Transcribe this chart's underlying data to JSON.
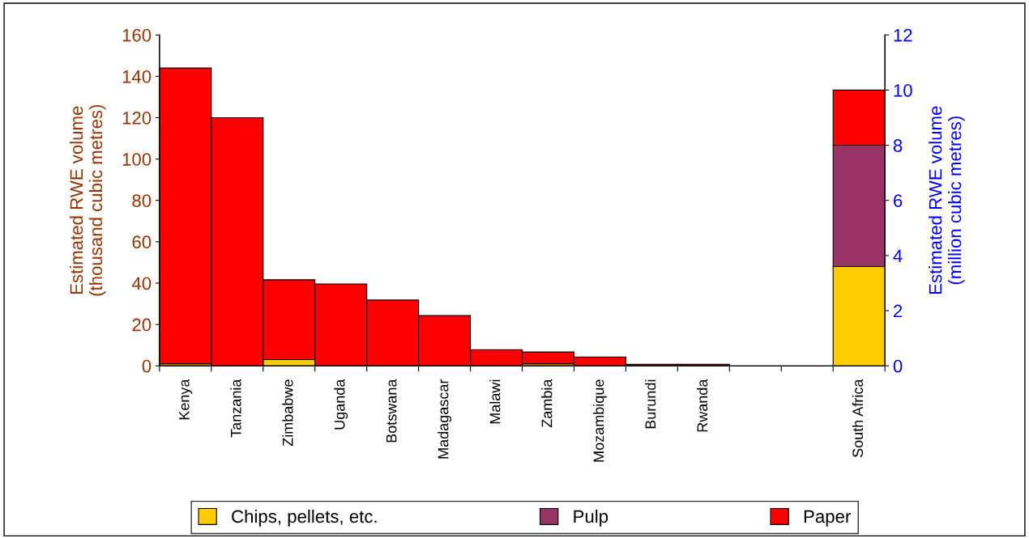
{
  "chart_data": {
    "type": "bar",
    "stacked": true,
    "ylabel": "Estimated RWE volume\n(thousand cubic metres)",
    "y2label": "Estimated RWE volume\n(million cubic metres)",
    "categories": [
      "Kenya",
      "Tanzania",
      "Zimbabwe",
      "Uganda",
      "Botswana",
      "Madagascar",
      "Malawi",
      "Zambia",
      "Mozambique",
      "Burundi",
      "Rwanda",
      null,
      null,
      "South Africa"
    ],
    "series": [
      {
        "color": "#ffcc00",
        "values": [
          1,
          0,
          3,
          0,
          0,
          0,
          0,
          1,
          0,
          0,
          0,
          0,
          0,
          null
        ]
      },
      {
        "color": "#ff0000",
        "values": [
          143,
          120,
          38.6,
          39.6,
          31.8,
          24.3,
          7.8,
          5.7,
          4.3,
          0.7,
          0.7,
          0,
          0,
          null
        ]
      },
      {
        "name": "Chips, pellets, etc.",
        "color": "#ffcc00",
        "axis": "y2",
        "values": [
          null,
          null,
          null,
          null,
          null,
          null,
          null,
          null,
          null,
          null,
          null,
          null,
          null,
          3.6
        ]
      },
      {
        "name": "Pulp",
        "color": "#993366",
        "axis": "y2",
        "values": [
          null,
          null,
          null,
          null,
          null,
          null,
          null,
          null,
          null,
          null,
          null,
          null,
          null,
          4.4
        ]
      },
      {
        "name": "Paper",
        "color": "#ff0000",
        "axis": "y2",
        "values": [
          null,
          null,
          null,
          null,
          null,
          null,
          null,
          null,
          null,
          null,
          null,
          null,
          null,
          2.0
        ]
      }
    ],
    "ylim": [
      0,
      160
    ],
    "yticks": [
      0,
      20,
      40,
      60,
      80,
      100,
      120,
      140,
      160
    ],
    "y2lim": [
      0,
      12
    ],
    "y2ticks": [
      0,
      2,
      4,
      6,
      8,
      10,
      12
    ],
    "grid": false,
    "legend": "bottom"
  }
}
